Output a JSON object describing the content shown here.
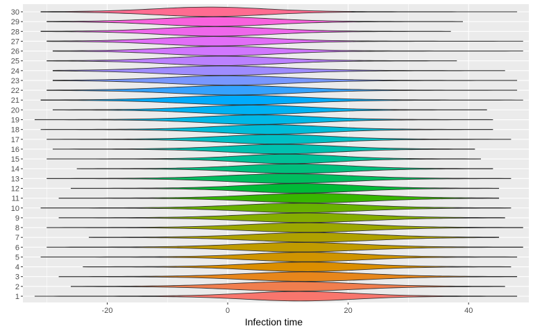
{
  "chart_data": {
    "type": "violin",
    "xlabel": "Infection time",
    "ylabel": "",
    "xlim": [
      -34,
      50
    ],
    "x_ticks": [
      -20,
      0,
      20,
      40
    ],
    "x_tick_labels": [
      "-20",
      "0",
      "20",
      "40"
    ],
    "categories": [
      "1",
      "2",
      "3",
      "4",
      "5",
      "6",
      "7",
      "8",
      "9",
      "10",
      "11",
      "12",
      "13",
      "14",
      "15",
      "16",
      "17",
      "18",
      "19",
      "20",
      "21",
      "22",
      "23",
      "24",
      "25",
      "26",
      "27",
      "28",
      "29",
      "30"
    ],
    "series": [
      {
        "category": "1",
        "color": "#F8766D",
        "min": -32,
        "max": 48,
        "center": 12,
        "spread": 9
      },
      {
        "category": "2",
        "color": "#F07E4E",
        "min": -26,
        "max": 46,
        "center": 11,
        "spread": 10
      },
      {
        "category": "3",
        "color": "#E7861B",
        "min": -28,
        "max": 48,
        "center": 13,
        "spread": 10
      },
      {
        "category": "4",
        "color": "#DB8E00",
        "min": -24,
        "max": 47,
        "center": 13,
        "spread": 9
      },
      {
        "category": "5",
        "color": "#CF9400",
        "min": -31,
        "max": 48,
        "center": 13,
        "spread": 9
      },
      {
        "category": "6",
        "color": "#C09B00",
        "min": -30,
        "max": 49,
        "center": 12,
        "spread": 10
      },
      {
        "category": "7",
        "color": "#AFA100",
        "min": -23,
        "max": 45,
        "center": 14,
        "spread": 10
      },
      {
        "category": "8",
        "color": "#9CA700",
        "min": -30,
        "max": 49,
        "center": 13,
        "spread": 10
      },
      {
        "category": "9",
        "color": "#85AD00",
        "min": -28,
        "max": 46,
        "center": 13,
        "spread": 10
      },
      {
        "category": "10",
        "color": "#68B100",
        "min": -31,
        "max": 47,
        "center": 12,
        "spread": 10
      },
      {
        "category": "11",
        "color": "#38B600",
        "min": -28,
        "max": 45,
        "center": 14,
        "spread": 10
      },
      {
        "category": "12",
        "color": "#00BA38",
        "min": -26,
        "max": 45,
        "center": 12,
        "spread": 9
      },
      {
        "category": "13",
        "color": "#00BD5F",
        "min": -30,
        "max": 47,
        "center": 10,
        "spread": 10
      },
      {
        "category": "14",
        "color": "#00BF7D",
        "min": -25,
        "max": 44,
        "center": 11,
        "spread": 9
      },
      {
        "category": "15",
        "color": "#00C097",
        "min": -30,
        "max": 42,
        "center": 10,
        "spread": 8
      },
      {
        "category": "16",
        "color": "#00C0AF",
        "min": -29,
        "max": 41,
        "center": 9,
        "spread": 9
      },
      {
        "category": "17",
        "color": "#00BFC4",
        "min": -30,
        "max": 47,
        "center": 8,
        "spread": 9
      },
      {
        "category": "18",
        "color": "#00BCD8",
        "min": -31,
        "max": 44,
        "center": 7,
        "spread": 9
      },
      {
        "category": "19",
        "color": "#00B8E7",
        "min": -32,
        "max": 44,
        "center": 5,
        "spread": 9
      },
      {
        "category": "20",
        "color": "#00B2F3",
        "min": -29,
        "max": 43,
        "center": 4,
        "spread": 9
      },
      {
        "category": "21",
        "color": "#00ABFD",
        "min": -31,
        "max": 49,
        "center": 2,
        "spread": 10
      },
      {
        "category": "22",
        "color": "#35A2FF",
        "min": -30,
        "max": 48,
        "center": 1,
        "spread": 10
      },
      {
        "category": "23",
        "color": "#7997FF",
        "min": -29,
        "max": 48,
        "center": 0,
        "spread": 10
      },
      {
        "category": "24",
        "color": "#9F8CFF",
        "min": -29,
        "max": 46,
        "center": -1,
        "spread": 10
      },
      {
        "category": "25",
        "color": "#BB81FF",
        "min": -30,
        "max": 38,
        "center": -1,
        "spread": 9
      },
      {
        "category": "26",
        "color": "#D177FE",
        "min": -29,
        "max": 49,
        "center": -1,
        "spread": 9
      },
      {
        "category": "27",
        "color": "#E26EF7",
        "min": -30,
        "max": 49,
        "center": -2,
        "spread": 9
      },
      {
        "category": "28",
        "color": "#EF67EB",
        "min": -31,
        "max": 37,
        "center": -2,
        "spread": 9
      },
      {
        "category": "29",
        "color": "#F962DD",
        "min": -30,
        "max": 39,
        "center": -2,
        "spread": 9
      },
      {
        "category": "30",
        "color": "#FF6C91",
        "min": -31,
        "max": 48,
        "center": -3,
        "spread": 9
      }
    ],
    "panel_background": "#EBEBEB",
    "grid_color": "#FFFFFF",
    "grid": true,
    "legend": "none"
  }
}
